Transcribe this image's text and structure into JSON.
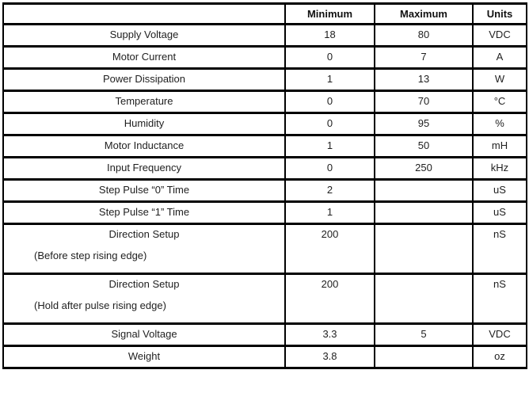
{
  "table": {
    "columns": [
      "",
      "Minimum",
      "Maximum",
      "Units"
    ],
    "rows": [
      {
        "parameter": "Supply Voltage",
        "note": "",
        "min": "18",
        "max": "80",
        "units": "VDC"
      },
      {
        "parameter": "Motor Current",
        "note": "",
        "min": "0",
        "max": "7",
        "units": "A"
      },
      {
        "parameter": "Power Dissipation",
        "note": "",
        "min": "1",
        "max": "13",
        "units": "W"
      },
      {
        "parameter": "Temperature",
        "note": "",
        "min": "0",
        "max": "70",
        "units": "°C"
      },
      {
        "parameter": "Humidity",
        "note": "",
        "min": "0",
        "max": "95",
        "units": "%"
      },
      {
        "parameter": "Motor Inductance",
        "note": "",
        "min": "1",
        "max": "50",
        "units": "mH"
      },
      {
        "parameter": "Input Frequency",
        "note": "",
        "min": "0",
        "max": "250",
        "units": "kHz"
      },
      {
        "parameter": "Step Pulse “0” Time",
        "note": "",
        "min": "2",
        "max": "",
        "units": "uS"
      },
      {
        "parameter": "Step Pulse “1” Time",
        "note": "",
        "min": "1",
        "max": "",
        "units": "uS"
      },
      {
        "parameter": "Direction Setup",
        "note": "(Before step rising edge)",
        "min": "200",
        "max": "",
        "units": "nS"
      },
      {
        "parameter": "Direction Setup",
        "note": "(Hold after pulse rising edge)",
        "min": "200",
        "max": "",
        "units": "nS"
      },
      {
        "parameter": "Signal Voltage",
        "note": "",
        "min": "3.3",
        "max": "5",
        "units": "VDC"
      },
      {
        "parameter": "Weight",
        "note": "",
        "min": "3.8",
        "max": "",
        "units": "oz"
      }
    ]
  }
}
